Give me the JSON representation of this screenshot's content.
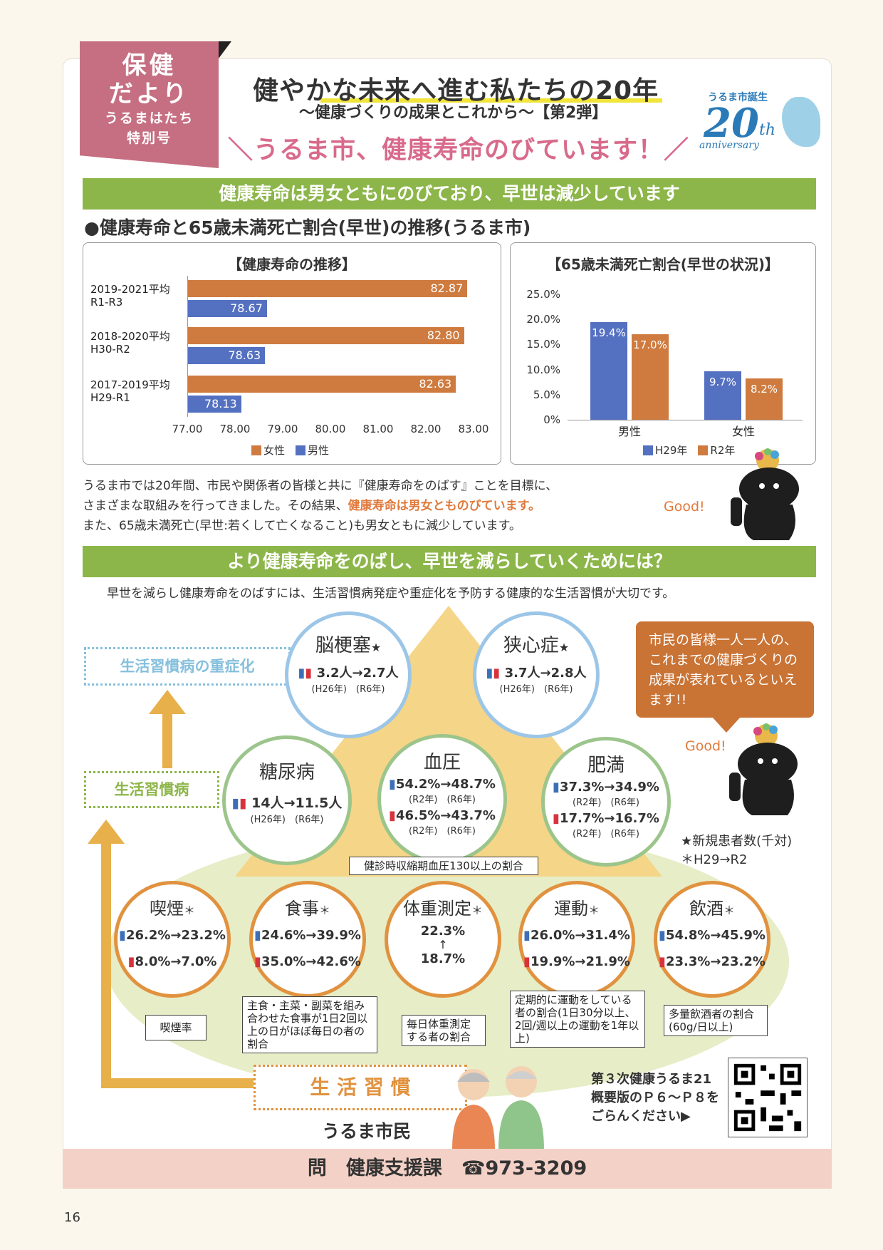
{
  "tag": {
    "line1": "保健",
    "line2": "だより",
    "line3": "うるまはたち",
    "line4": "特別号"
  },
  "header": {
    "title": "健やかな未来へ進む私たちの20年",
    "subtitle": "〜健康づくりの成果とこれから〜【第2弾】",
    "slogan": "＼うるま市、健康寿命のびています！／",
    "logo_top": "うるま市誕生",
    "logo_num": "20",
    "logo_th": "th",
    "logo_sub": "anniversary"
  },
  "section1": {
    "banner": "健康寿命は男女ともにのびており、早世は減少しています",
    "heading": "●健康寿命と65歳未満死亡割合(早世)の推移(うるま市)"
  },
  "chart_data": [
    {
      "type": "bar",
      "orientation": "horizontal",
      "title": "【健康寿命の推移】",
      "categories": [
        "2019-2021平均\nR1-R3",
        "2018-2020平均\nH30-R2",
        "2017-2019平均\nH29-R1"
      ],
      "cat_line1": [
        "2019-2021平均",
        "2018-2020平均",
        "2017-2019平均"
      ],
      "cat_line2": [
        "R1-R3",
        "H30-R2",
        "H29-R1"
      ],
      "series": [
        {
          "name": "女性",
          "values": [
            82.87,
            82.8,
            82.63
          ],
          "color": "#cf7b3f"
        },
        {
          "name": "男性",
          "values": [
            78.67,
            78.63,
            78.13
          ],
          "color": "#5470c1"
        }
      ],
      "value_labels": {
        "female": [
          "82.87",
          "82.80",
          "82.63"
        ],
        "male": [
          "78.67",
          "78.63",
          "78.13"
        ]
      },
      "xlim": [
        77.0,
        83.0
      ],
      "ticks": [
        "77.00",
        "78.00",
        "79.00",
        "80.00",
        "81.00",
        "82.00",
        "83.00"
      ],
      "legend": "bottom"
    },
    {
      "type": "bar",
      "title": "【65歳未満死亡割合(早世の状況)】",
      "categories": [
        "男性",
        "女性"
      ],
      "series": [
        {
          "name": "H29年",
          "values": [
            19.4,
            9.7
          ],
          "color": "#5470c1"
        },
        {
          "name": "R2年",
          "values": [
            17.0,
            8.2
          ],
          "color": "#cf7b3f"
        }
      ],
      "value_labels": {
        "h29": [
          "19.4%",
          "9.7%"
        ],
        "r2": [
          "17.0%",
          "8.2%"
        ]
      },
      "ylim": [
        0,
        25
      ],
      "ticks": [
        "25.0%",
        "20.0%",
        "15.0%",
        "10.0%",
        "5.0%",
        "0%"
      ],
      "legend": "bottom"
    }
  ],
  "text1": {
    "l1": "うるま市では20年間、市民や関係者の皆様と共に『健康寿命をのばす』ことを目標に、",
    "l2a": "さまざまな取組みを行ってきました。その結果、",
    "l2b": "健康寿命は男女とものびています。",
    "l3": "また、65歳未満死亡(早世:若くして亡くなること)も男女ともに減少しています。",
    "good": "Good!"
  },
  "section2": {
    "banner": "より健康寿命をのばし、早世を減らしていくためには？",
    "intro": "早世を減らし健康寿命をのばすには、生活習慣病発症や重症化を予防する健康的な生活習慣が大切です。"
  },
  "labels": {
    "severe": "生活習慣病の重症化",
    "disease": "生活習慣病",
    "habit": "生 活 習 慣",
    "citizen": "うるま市民"
  },
  "top": [
    {
      "name": "脳梗塞",
      "star": "★",
      "v": "3.2人→2.7人",
      "y": "(H26年)　(R6年)"
    },
    {
      "name": "狭心症",
      "star": "★",
      "v": "3.7人→2.8人",
      "y": "(H26年)　(R6年)"
    }
  ],
  "mid": {
    "diabetes": {
      "name": "糖尿病",
      "v": "14人→11.5人",
      "y": "(H26年)　(R6年)"
    },
    "bp": {
      "name": "血圧",
      "m": "54.2%→48.7%",
      "my": "(R2年)　(R6年)",
      "f": "46.5%→43.7%",
      "fy": "(R2年)　(R6年)",
      "note": "健診時収縮期血圧130以上の割合"
    },
    "obesity": {
      "name": "肥満",
      "m": "37.3%→34.9%",
      "my": "(R2年)　(R6年)",
      "f": "17.7%→16.7%",
      "fy": "(R2年)　(R6年)"
    }
  },
  "bottom": [
    {
      "name": "喫煙",
      "star": "＊",
      "m": "26.2%→23.2%",
      "f": "8.0%→7.0%",
      "note": "喫煙率"
    },
    {
      "name": "食事",
      "star": "＊",
      "m": "24.6%→39.9%",
      "f": "35.0%→42.6%",
      "note": "主食・主菜・副菜を組み合わせた食事が1日2回以上の日がほぼ毎日の者の割合"
    },
    {
      "name": "体重測定",
      "star": "＊",
      "a": "22.3%",
      "arrow": "↑",
      "b": "18.7%",
      "note": "毎日体重測定する者の割合"
    },
    {
      "name": "運動",
      "star": "＊",
      "m": "26.0%→31.4%",
      "f": "19.9%→21.9%",
      "note": "定期的に運動をしている者の割合(1日30分以上、2回/週以上の運動を1年以上)"
    },
    {
      "name": "飲酒",
      "star": "＊",
      "m": "54.8%→45.9%",
      "f": "23.3%→23.2%",
      "note": "多量飲酒者の割合(60g/日以上)"
    }
  ],
  "legendnote": {
    "l1": "★新規患者数(千対)",
    "l2": "＊H29→R2"
  },
  "bubble": "市民の皆様一人一人の、これまでの健康づくりの成果が表れているといえます!!",
  "good2": "Good!",
  "qrtext": {
    "l1": "第３次健康うるま21",
    "l2": "概要版のＰ６〜Ｐ８を",
    "l3": "ごらんください▶"
  },
  "footer": "問　健康支援課　☎973-3209",
  "page": "16"
}
